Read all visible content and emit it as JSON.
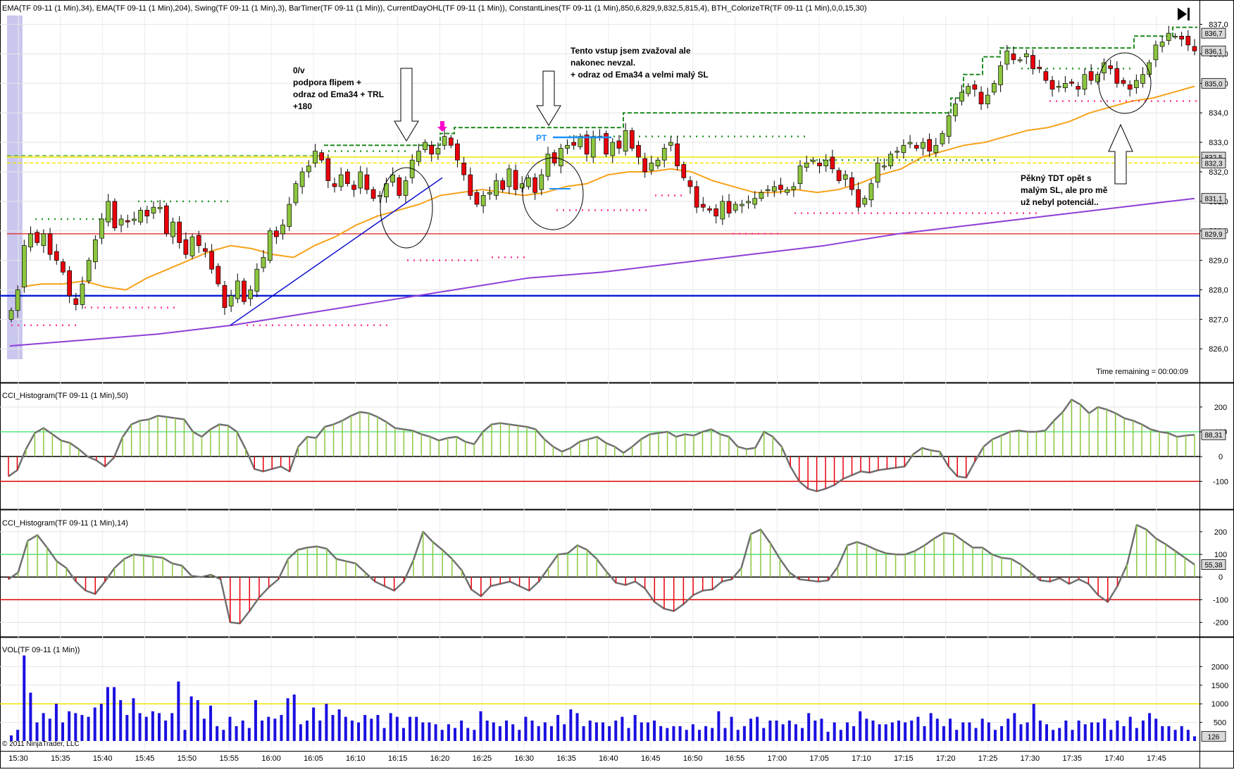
{
  "header": {
    "indicator_list": "EMA(TF 09-11 (1 Min),34), EMA(TF 09-11 (1 Min),204), Swing(TF 09-11 (1 Min),3), BarTimer(TF 09-11 (1 Min)), CurrentDayOHL(TF 09-11 (1 Min)), ConstantLines(TF 09-11 (1 Min),850,6,829,9,832,5,815,4), BTH_ColorizeTR(TF 09-11 (1 Min),0,0,15,30)",
    "time_remaining": "Time remaining = 00:00:09",
    "copyright": "© 2011 NinjaTrader, LLC"
  },
  "colors": {
    "up_candle": "#8dc63f",
    "down_candle": "#e8000b",
    "ema34": "#f7a21b",
    "ema204": "#8e3fd6",
    "blue_line": "#0b1fd6",
    "swing_high": "#2a9d2a",
    "swing_low": "#ff3a9a",
    "day_high": "#1e8a1e",
    "yellow_line": "#f1e600",
    "red_line": "#e04040",
    "cci_line": "#707070",
    "cci_pos": "#8dc63f",
    "cci_neg": "#e8000b",
    "volume": "#1a10e0"
  },
  "annotations": {
    "a1": [
      "0/v",
      "podpora flipem +",
      "odraz od Ema34 + TRL",
      "+180"
    ],
    "a2": [
      "Tento vstup jsem zvažoval ale",
      "nakonec nevzal.",
      "+ odraz od Ema34 a velmi malý SL"
    ],
    "a3": [
      "Pěkný TDT opět s",
      "malým SL, ale pro mě",
      "už nebyl potenciál.."
    ],
    "pt": "PT"
  },
  "chart_data": [
    {
      "type": "candlestick",
      "title": "",
      "y_ticks": [
        "826,0",
        "827,0",
        "828,0",
        "829,0",
        "830,0",
        "831,0",
        "832,0",
        "833,0",
        "834,0",
        "835,0",
        "836,0",
        "837,0"
      ],
      "ylim": [
        825.6,
        837.3
      ],
      "price_markers": [
        {
          "label": "836,7",
          "value": 836.7
        },
        {
          "label": "836,1",
          "value": 836.1
        },
        {
          "label": "835,0",
          "value": 835.0
        },
        {
          "label": "832,5",
          "value": 832.5
        },
        {
          "label": "832,3",
          "value": 832.3
        },
        {
          "label": "831,1",
          "value": 831.1
        },
        {
          "label": "829,9",
          "value": 829.9
        }
      ],
      "constant_lines": [
        829.9,
        832.5,
        832.3
      ],
      "blue_horizontal": 827.8,
      "x_ticks": [
        "15:30",
        "15:35",
        "15:40",
        "15:45",
        "15:50",
        "15:55",
        "16:00",
        "16:05",
        "16:10",
        "16:15",
        "16:20",
        "16:25",
        "16:30",
        "16:35",
        "16:40",
        "16:45",
        "16:50",
        "16:55",
        "17:00",
        "17:05",
        "17:10",
        "17:15",
        "17:20",
        "17:25",
        "17:30",
        "17:35",
        "17:40",
        "17:45"
      ],
      "close": [
        827.3,
        828.0,
        829.5,
        829.9,
        829.6,
        829.9,
        829.2,
        829.0,
        828.6,
        827.8,
        827.5,
        828.2,
        829.0,
        829.7,
        830.4,
        831.0,
        830.1,
        830.4,
        830.3,
        830.4,
        830.7,
        830.5,
        830.8,
        830.8,
        829.9,
        830.3,
        829.6,
        829.2,
        829.8,
        829.5,
        829.3,
        828.7,
        828.2,
        827.4,
        827.8,
        828.3,
        827.6,
        828.0,
        828.7,
        829.1,
        830.0,
        829.8,
        830.2,
        830.9,
        831.6,
        832.0,
        832.2,
        832.7,
        832.4,
        831.7,
        831.5,
        831.9,
        831.6,
        831.4,
        832.0,
        831.4,
        831.1,
        831.2,
        831.6,
        831.9,
        831.2,
        831.7,
        832.4,
        832.7,
        833.0,
        832.6,
        832.8,
        833.2,
        832.9,
        832.4,
        831.9,
        831.2,
        830.9,
        831.2,
        831.3,
        831.7,
        831.4,
        832.1,
        831.4,
        831.6,
        831.8,
        831.3,
        831.9,
        832.6,
        832.3,
        832.8,
        832.9,
        832.9,
        833.2,
        832.6,
        833.2,
        833.2,
        832.6,
        833.0,
        832.8,
        833.4,
        832.8,
        832.5,
        832.0,
        832.3,
        832.4,
        832.8,
        833.0,
        832.2,
        831.8,
        831.5,
        830.8,
        830.8,
        830.7,
        830.5,
        831.0,
        830.6,
        830.9,
        830.9,
        831.0,
        831.1,
        831.3,
        831.4,
        831.5,
        831.4,
        831.4,
        831.5,
        832.2,
        832.3,
        832.4,
        832.2,
        832.4,
        832.1,
        831.7,
        831.9,
        831.4,
        830.8,
        831.1,
        831.6,
        832.3,
        832.2,
        832.6,
        832.7,
        832.9,
        833.0,
        832.8,
        833.0,
        832.7,
        832.9,
        833.3,
        833.9,
        834.3,
        834.7,
        834.9,
        834.8,
        834.3,
        834.6,
        835.0,
        835.6,
        836.1,
        835.8,
        835.8,
        836.0,
        835.5,
        835.5,
        835.1,
        834.8,
        834.9,
        835.0,
        835.0,
        834.8,
        835.3,
        835.1,
        835.3,
        835.7,
        835.5,
        835.0,
        835.0,
        834.8,
        835.1,
        835.3,
        835.7,
        836.3,
        836.4,
        836.7,
        836.6,
        836.5,
        836.3,
        836.1
      ],
      "ema34_approx": [
        828.1,
        828.2,
        828.2,
        828.3,
        828.1,
        828.0,
        828.4,
        828.7,
        829.0,
        829.3,
        829.5,
        829.4,
        829.2,
        829.1,
        829.5,
        829.8,
        830.2,
        830.5,
        830.7,
        830.9,
        831.2,
        831.3,
        831.4,
        831.3,
        831.2,
        831.3,
        831.5,
        831.6,
        831.9,
        832.0,
        832.0,
        832.1,
        832.0,
        831.7,
        831.5,
        831.3,
        831.3,
        831.4,
        831.3,
        831.4,
        831.6,
        831.9,
        832.1,
        832.5,
        832.7,
        832.9,
        833.0,
        833.2,
        833.4,
        833.5,
        833.7,
        834.0,
        834.2,
        834.4,
        834.5,
        834.7,
        834.9
      ],
      "ema204_approx": [
        826.1,
        826.3,
        826.5,
        826.8,
        827.2,
        827.6,
        828.0,
        828.4,
        828.6,
        828.9,
        829.2,
        829.5,
        829.9,
        830.2,
        830.5,
        830.8,
        831.1
      ]
    },
    {
      "type": "area",
      "title": "CCI_Histogram(TF 09-11 (1 Min),50)",
      "y_ticks": [
        "200",
        "100",
        "0",
        "-100"
      ],
      "ylim": [
        -190,
        265
      ],
      "levels": [
        100,
        0,
        -100
      ],
      "last_value_label": "88,31",
      "values": [
        -80,
        -55,
        30,
        95,
        115,
        90,
        65,
        55,
        30,
        0,
        -15,
        -40,
        -5,
        80,
        130,
        145,
        150,
        165,
        160,
        155,
        150,
        100,
        80,
        110,
        130,
        125,
        100,
        30,
        -50,
        -60,
        -50,
        -40,
        -60,
        40,
        80,
        75,
        120,
        130,
        145,
        165,
        180,
        175,
        160,
        140,
        115,
        110,
        105,
        90,
        80,
        65,
        75,
        80,
        60,
        50,
        100,
        130,
        135,
        130,
        125,
        120,
        110,
        70,
        40,
        20,
        35,
        60,
        70,
        80,
        55,
        40,
        15,
        40,
        70,
        90,
        95,
        100,
        80,
        90,
        85,
        100,
        110,
        90,
        80,
        40,
        30,
        35,
        100,
        80,
        40,
        -40,
        -100,
        -130,
        -140,
        -130,
        -115,
        -90,
        -75,
        -60,
        -65,
        -55,
        -50,
        -45,
        -40,
        10,
        35,
        25,
        20,
        -40,
        -80,
        -85,
        -20,
        40,
        70,
        85,
        100,
        105,
        100,
        100,
        105,
        145,
        180,
        230,
        210,
        175,
        200,
        190,
        175,
        155,
        145,
        130,
        110,
        100,
        95,
        80,
        85,
        88
      ]
    },
    {
      "type": "area",
      "title": "CCI_Histogram(TF 09-11 (1 Min),14)",
      "y_ticks": [
        "200",
        "100",
        "0",
        "-100",
        "-200"
      ],
      "ylim": [
        -245,
        265
      ],
      "levels": [
        100,
        0,
        -100
      ],
      "last_value_label": "55,38",
      "values": [
        -10,
        20,
        160,
        185,
        130,
        70,
        40,
        -20,
        -60,
        -75,
        -20,
        40,
        80,
        100,
        95,
        90,
        85,
        60,
        50,
        5,
        0,
        10,
        -10,
        -200,
        -205,
        -150,
        -90,
        -45,
        -10,
        80,
        120,
        130,
        135,
        125,
        80,
        70,
        60,
        20,
        -20,
        -40,
        -60,
        -20,
        75,
        200,
        155,
        120,
        80,
        30,
        -55,
        -85,
        -40,
        -30,
        -20,
        -40,
        -60,
        -20,
        40,
        100,
        105,
        140,
        120,
        80,
        25,
        -25,
        -35,
        -20,
        -50,
        -110,
        -140,
        -150,
        -120,
        -80,
        -60,
        -55,
        -20,
        -10,
        40,
        190,
        210,
        150,
        80,
        20,
        -10,
        -15,
        -20,
        -15,
        45,
        140,
        155,
        140,
        120,
        105,
        100,
        100,
        115,
        140,
        170,
        195,
        190,
        160,
        130,
        130,
        100,
        85,
        80,
        55,
        20,
        -15,
        -20,
        -5,
        -30,
        -10,
        -30,
        -80,
        -110,
        -40,
        55,
        230,
        210,
        170,
        145,
        115,
        85,
        55
      ],
      "mid_zero_note": ""
    },
    {
      "type": "bar",
      "title": "VOL(TF 09-11 (1 Min))",
      "y_ticks": [
        "2000",
        "1500",
        "1000",
        "500"
      ],
      "ylim": [
        0,
        2500
      ],
      "reference_line": 1000,
      "last_value_label": "126",
      "values": [
        150,
        300,
        2300,
        1300,
        500,
        750,
        600,
        1000,
        500,
        800,
        750,
        700,
        650,
        900,
        1000,
        1450,
        1450,
        1100,
        700,
        1150,
        750,
        650,
        800,
        750,
        550,
        750,
        1600,
        300,
        1200,
        1100,
        600,
        950,
        400,
        300,
        650,
        400,
        550,
        350,
        1100,
        550,
        650,
        600,
        700,
        1150,
        1250,
        450,
        550,
        900,
        550,
        1000,
        700,
        850,
        650,
        550,
        500,
        700,
        600,
        700,
        350,
        750,
        650,
        350,
        650,
        650,
        500,
        500,
        450,
        300,
        450,
        350,
        550,
        350,
        300,
        800,
        550,
        500,
        400,
        550,
        450,
        300,
        650,
        550,
        400,
        500,
        400,
        700,
        450,
        850,
        750,
        400,
        550,
        500,
        500,
        400,
        550,
        650,
        350,
        700,
        500,
        500,
        550,
        400,
        350,
        400,
        400,
        300,
        450,
        300,
        400,
        350,
        800,
        350,
        650,
        300,
        400,
        600,
        650,
        350,
        550,
        550,
        450,
        550,
        450,
        350,
        750,
        550,
        600,
        250,
        500,
        300,
        500,
        400,
        800,
        600,
        550,
        450,
        450,
        500,
        550,
        500,
        550,
        650,
        400,
        750,
        600,
        400,
        600,
        300,
        500,
        500,
        350,
        600,
        500,
        300,
        400,
        600,
        750,
        450,
        500,
        1000,
        550,
        450,
        300,
        350,
        550,
        300,
        550,
        450,
        500,
        500,
        600,
        300,
        550,
        400,
        650,
        350,
        550,
        750,
        600,
        400,
        400,
        300,
        400,
        300,
        126
      ]
    }
  ]
}
